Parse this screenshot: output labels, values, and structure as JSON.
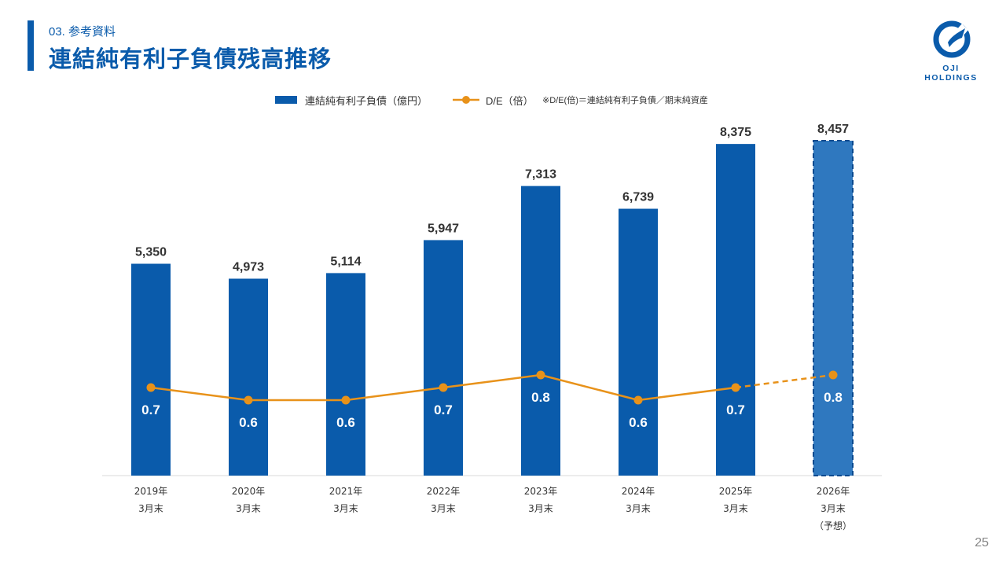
{
  "header": {
    "section": "03. 参考資料",
    "title": "連結純有利子負債残高推移"
  },
  "logo": {
    "text": "OJI HOLDINGS",
    "color": "#0a5bab"
  },
  "legend": {
    "bar_label": "連結純有利子負債（億円）",
    "line_label": "D/E（倍）",
    "note": "※D/E(倍)＝連結純有利子負債／期末純資産"
  },
  "page_number": "25",
  "colors": {
    "bar": "#0a5bab",
    "bar_forecast": "#2f78bf",
    "line": "#e8921a",
    "axis": "#d9d9d9"
  },
  "chart_data": {
    "type": "bar",
    "categories": [
      [
        "2019年",
        "3月末"
      ],
      [
        "2020年",
        "3月末"
      ],
      [
        "2021年",
        "3月末"
      ],
      [
        "2022年",
        "3月末"
      ],
      [
        "2023年",
        "3月末"
      ],
      [
        "2024年",
        "3月末"
      ],
      [
        "2025年",
        "3月末"
      ],
      [
        "2026年",
        "3月末",
        "（予想）"
      ]
    ],
    "series": [
      {
        "name": "連結純有利子負債（億円）",
        "type": "bar",
        "values": [
          5350,
          4973,
          5114,
          5947,
          7313,
          6739,
          8375,
          8457
        ],
        "labels": [
          "5,350",
          "4,973",
          "5,114",
          "5,947",
          "7,313",
          "6,739",
          "8,375",
          "8,457"
        ]
      },
      {
        "name": "D/E（倍）",
        "type": "line",
        "values": [
          0.7,
          0.6,
          0.6,
          0.7,
          0.8,
          0.6,
          0.7,
          0.8
        ],
        "labels": [
          "0.7",
          "0.6",
          "0.6",
          "0.7",
          "0.8",
          "0.6",
          "0.7",
          "0.8"
        ]
      }
    ],
    "forecast_index": 7,
    "ylim": [
      0,
      8457
    ]
  }
}
